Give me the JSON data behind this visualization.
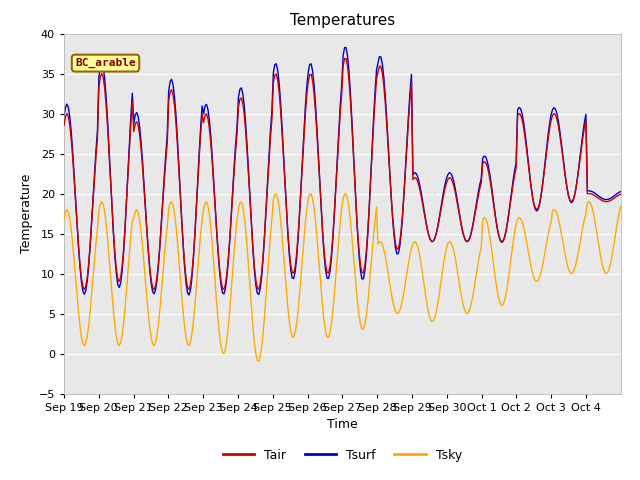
{
  "title": "Temperatures",
  "xlabel": "Time",
  "ylabel": "Temperature",
  "ylim": [
    -5,
    40
  ],
  "annotation": "BC_arable",
  "line_colors": {
    "Tair": "#cc0000",
    "Tsurf": "#0000cc",
    "Tsky": "#ffaa00"
  },
  "legend_labels": [
    "Tair",
    "Tsurf",
    "Tsky"
  ],
  "bg_color": "#ffffff",
  "plot_bg_color": "#e8e8e8",
  "annotation_bg": "#ffff99",
  "annotation_border": "#996600",
  "annotation_text_color": "#800000",
  "tick_dates": [
    "Sep 19",
    "Sep 20",
    "Sep 21",
    "Sep 22",
    "Sep 23",
    "Sep 24",
    "Sep 25",
    "Sep 26",
    "Sep 27",
    "Sep 28",
    "Sep 29",
    "Sep 30",
    "Oct 1",
    "Oct 2",
    "Oct 3",
    "Oct 4"
  ],
  "day_mins_air": [
    8,
    9,
    8,
    8,
    8,
    8,
    10,
    10,
    10,
    13,
    14,
    14,
    14,
    18,
    19,
    19
  ],
  "day_maxs_air": [
    30,
    35,
    29,
    33,
    30,
    32,
    35,
    35,
    37,
    36,
    22,
    22,
    24,
    30,
    30,
    20
  ],
  "day_mins_sky": [
    1,
    1,
    1,
    1,
    0,
    -1,
    2,
    2,
    3,
    5,
    4,
    5,
    6,
    9,
    10,
    10
  ],
  "day_maxs_sky": [
    18,
    19,
    18,
    19,
    19,
    19,
    20,
    20,
    20,
    14,
    14,
    14,
    17,
    17,
    18,
    19
  ]
}
